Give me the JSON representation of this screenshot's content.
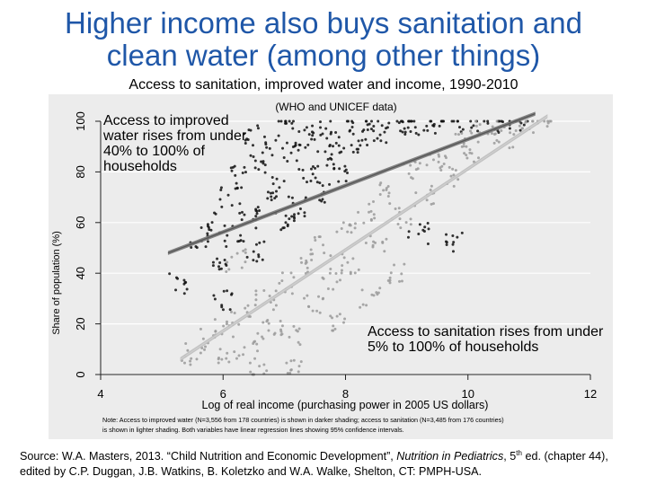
{
  "title": {
    "line1": "Higher income also buys sanitation and",
    "line2": "clean water (among other things)"
  },
  "subtitle": "Access to sanitation, improved water and income, 1990-2010",
  "annotations": {
    "water": "Access to improved water rises from under 40% to 100% of households",
    "sanitation": "Access to sanitation rises from under 5% to 100% of households"
  },
  "source": {
    "prefix": "Source: W.A. Masters, 2013. “Child Nutrition and Economic Development”, ",
    "book": "Nutrition in Pediatrics",
    "after_book": ", 5",
    "sup": "th",
    "suffix": " ed. (chapter 44), edited by C.P. Duggan, J.B. Watkins, B. Koletzko and W.A. Walke, Shelton, CT: PMPH-USA."
  },
  "chart_data": {
    "type": "scatter",
    "title": "(WHO and UNICEF data)",
    "xlabel": "Log of real income (purchasing power in 2005 US dollars)",
    "ylabel": "Share of population (%)",
    "xlim": [
      4,
      12
    ],
    "ylim": [
      0,
      100
    ],
    "xticks": [
      4,
      6,
      8,
      10,
      12
    ],
    "yticks": [
      0,
      20,
      40,
      60,
      80,
      100
    ],
    "note_line1": "Note: Access to improved water (N=3,556 from 178 countries) is shown in darker shading; access to sanitation (N=3,485 from 176 countries)",
    "note_line2": "is shown in lighter shading. Both variables have linear regression lines showing 95% confidence intervals.",
    "series": [
      {
        "name": "Access to improved water",
        "shade": "darker",
        "color": "#111111",
        "n": 3556,
        "countries": 178,
        "fit_line": [
          [
            5.1,
            48
          ],
          [
            11.1,
            103
          ]
        ],
        "points": [
          [
            5.3,
            36
          ],
          [
            5.6,
            52
          ],
          [
            5.8,
            60
          ],
          [
            5.9,
            44
          ],
          [
            6.1,
            70
          ],
          [
            6.2,
            55
          ],
          [
            6.3,
            78
          ],
          [
            6.4,
            62
          ],
          [
            6.5,
            48
          ],
          [
            6.6,
            84
          ],
          [
            6.7,
            68
          ],
          [
            6.8,
            90
          ],
          [
            6.9,
            74
          ],
          [
            7.0,
            58
          ],
          [
            7.1,
            88
          ],
          [
            7.2,
            66
          ],
          [
            7.3,
            94
          ],
          [
            7.4,
            80
          ],
          [
            7.5,
            72
          ],
          [
            7.6,
            97
          ],
          [
            7.7,
            86
          ],
          [
            7.8,
            92
          ],
          [
            7.9,
            78
          ],
          [
            8.0,
            98
          ],
          [
            8.2,
            90
          ],
          [
            8.4,
            100
          ],
          [
            8.6,
            95
          ],
          [
            8.8,
            99
          ],
          [
            9.0,
            100
          ],
          [
            9.3,
            97
          ],
          [
            9.6,
            100
          ],
          [
            10.0,
            100
          ],
          [
            10.4,
            100
          ],
          [
            10.8,
            100
          ],
          [
            6.0,
            30
          ],
          [
            6.5,
            95
          ],
          [
            7.0,
            100
          ],
          [
            9.2,
            56
          ],
          [
            9.8,
            53
          ]
        ]
      },
      {
        "name": "Access to sanitation",
        "shade": "lighter",
        "color": "#9a9a9a",
        "n": 3485,
        "countries": 176,
        "fit_line": [
          [
            5.3,
            6
          ],
          [
            11.3,
            102
          ]
        ],
        "points": [
          [
            5.5,
            8
          ],
          [
            5.8,
            14
          ],
          [
            6.0,
            18
          ],
          [
            6.1,
            6
          ],
          [
            6.3,
            24
          ],
          [
            6.5,
            12
          ],
          [
            6.7,
            30
          ],
          [
            6.8,
            20
          ],
          [
            7.0,
            36
          ],
          [
            7.1,
            16
          ],
          [
            7.3,
            42
          ],
          [
            7.5,
            28
          ],
          [
            7.6,
            50
          ],
          [
            7.8,
            38
          ],
          [
            8.0,
            56
          ],
          [
            8.1,
            44
          ],
          [
            8.3,
            64
          ],
          [
            8.5,
            52
          ],
          [
            8.7,
            72
          ],
          [
            8.9,
            62
          ],
          [
            9.1,
            80
          ],
          [
            9.3,
            70
          ],
          [
            9.5,
            86
          ],
          [
            9.7,
            78
          ],
          [
            9.9,
            92
          ],
          [
            10.1,
            88
          ],
          [
            10.3,
            96
          ],
          [
            10.6,
            94
          ],
          [
            10.9,
            99
          ],
          [
            11.2,
            100
          ],
          [
            6.2,
            45
          ],
          [
            6.6,
            2
          ],
          [
            7.2,
            4
          ],
          [
            7.9,
            20
          ],
          [
            8.4,
            30
          ],
          [
            8.8,
            40
          ]
        ]
      }
    ]
  }
}
